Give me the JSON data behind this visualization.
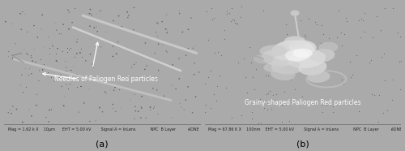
{
  "figsize": [
    5.0,
    1.86
  ],
  "dpi": 100,
  "label_a": "(a)",
  "label_b": "(b)",
  "text_a": "Needles of Paliogen Red particles",
  "text_b": "Grainy-shaped Paliogen Red particles",
  "status_text_a": "Mag = 1.62 k X    10μm      EHT = 5.00 kV        Signal A = InLens            NPC  B Layer          éDNE",
  "status_text_b": "Mag = 67.86 K X    100nm    EHT = 5.00 kV        Signal A = InLens            NPC  B Layer          éDNE",
  "bg_dark": "#111111",
  "text_color": "#ffffff",
  "status_bg": "#c8c8c8",
  "label_fontsize": 8,
  "text_fontsize": 5.5,
  "status_fontsize": 3.5
}
